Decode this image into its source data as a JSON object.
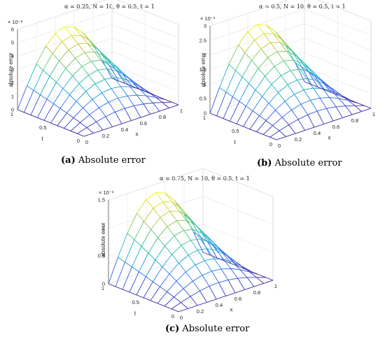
{
  "chart_data": [
    {
      "type": "surface",
      "title": "α = 0.25, N = 10, θ = 0.5, t = 1",
      "zlabel": "absolute error",
      "xlabel": "x",
      "ylabel": "t",
      "exponent_label": "× 10⁻³",
      "zmax": 5.0,
      "zlim": [
        0,
        6
      ],
      "zticks": [
        "0",
        "1",
        "2",
        "3",
        "4",
        "5",
        "6"
      ],
      "xticks": [
        "0",
        "0.2",
        "0.4",
        "0.6",
        "0.8",
        "1"
      ],
      "tticks": [
        "0",
        "0.5",
        "1"
      ],
      "caption_tag": "(a)",
      "caption_text": " Absolute error"
    },
    {
      "type": "surface",
      "title": "α = 0.5, N = 10, θ = 0.5, t = 1",
      "zlabel": "absolute error",
      "xlabel": "x",
      "ylabel": "t",
      "exponent_label": "× 10⁻³",
      "zmax": 2.5,
      "zlim": [
        0,
        3
      ],
      "zticks": [
        "0",
        "0.5",
        "1",
        "1.5",
        "2",
        "2.5",
        "3"
      ],
      "xticks": [
        "0",
        "0.2",
        "0.4",
        "0.6",
        "0.8",
        "1"
      ],
      "tticks": [
        "0",
        "0.5",
        "1"
      ],
      "caption_tag": "(b)",
      "caption_text": " Absolute error"
    },
    {
      "type": "surface",
      "title": "α = 0.75, N = 10, θ = 0.5, t = 1",
      "zlabel": "absolute error",
      "xlabel": "x",
      "ylabel": "t",
      "exponent_label": "× 10⁻³",
      "zmax": 1.35,
      "zlim": [
        0,
        1.5
      ],
      "zticks": [
        "0",
        "0.5",
        "1",
        "1.5"
      ],
      "xticks": [
        "0",
        "0.2",
        "0.4",
        "0.6",
        "0.8",
        "1"
      ],
      "tticks": [
        "0",
        "0.5",
        "1"
      ],
      "caption_tag": "(c)",
      "caption_text": " Absolute error"
    }
  ]
}
